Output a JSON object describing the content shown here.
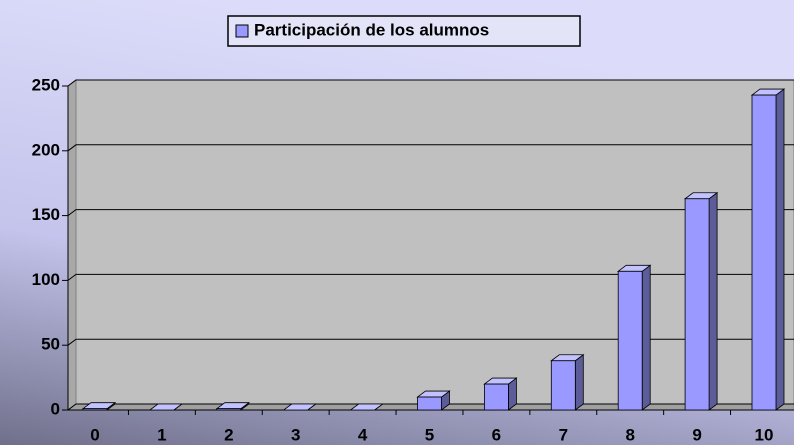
{
  "chart_data": {
    "type": "bar3d",
    "categories": [
      "0",
      "1",
      "2",
      "3",
      "4",
      "5",
      "6",
      "7",
      "8",
      "9",
      "10"
    ],
    "series": [
      {
        "name": "Participación de los alumnos",
        "color": "#9999ff",
        "values": [
          1,
          0,
          1,
          0,
          0,
          10,
          20,
          38,
          107,
          163,
          243
        ]
      }
    ],
    "ylim": [
      0,
      250
    ],
    "yticks": [
      0,
      50,
      100,
      150,
      200,
      250
    ],
    "grid": true,
    "legend": "top"
  }
}
